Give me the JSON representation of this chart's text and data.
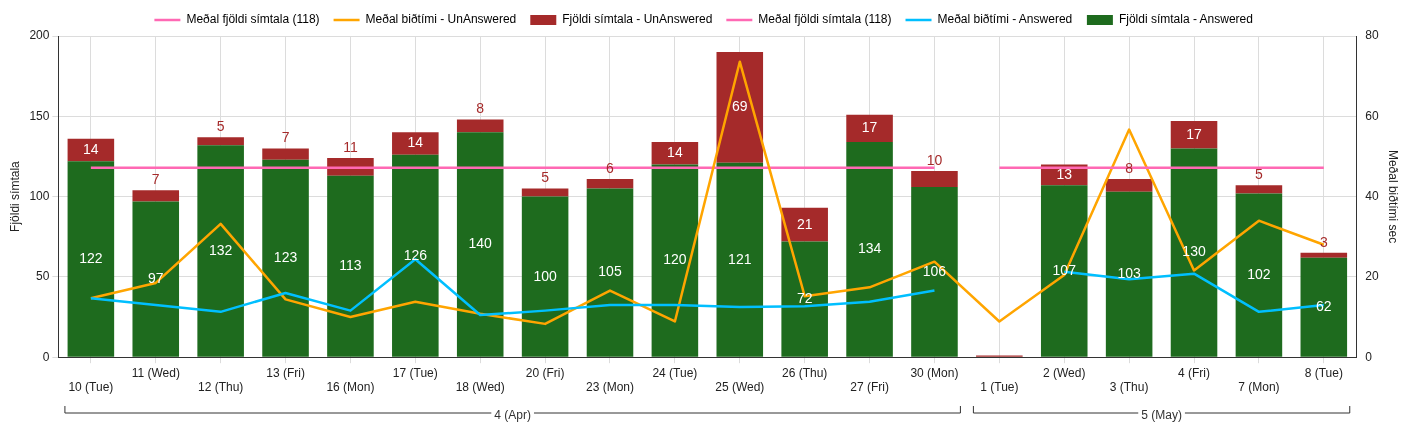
{
  "chart_data": {
    "type": "bar",
    "stacked": true,
    "categories": [
      "10 (Tue)",
      "11 (Wed)",
      "12 (Thu)",
      "13 (Fri)",
      "16 (Mon)",
      "17 (Tue)",
      "18 (Wed)",
      "20 (Fri)",
      "23 (Mon)",
      "24 (Tue)",
      "25 (Wed)",
      "26 (Thu)",
      "27 (Fri)",
      "30 (Mon)",
      "1 (Tue)",
      "2 (Wed)",
      "3 (Thu)",
      "4 (Fri)",
      "7 (Mon)",
      "8 (Tue)"
    ],
    "ylabel": "Fjöldi símtala",
    "y2label": "Meðal biðtími sec",
    "ylim": [
      0,
      200
    ],
    "yticks": [
      0,
      50,
      100,
      150,
      200
    ],
    "y2lim": [
      0,
      80
    ],
    "y2ticks": [
      0,
      20,
      40,
      60,
      80
    ],
    "grid": true,
    "legend": "top",
    "annotations": [
      "4 (Apr)",
      "5 (May)"
    ],
    "series": [
      {
        "name": "Fjöldi símtala - Answered",
        "color": "#1e6b1e",
        "values": [
          122,
          97,
          132,
          123,
          113,
          126,
          140,
          100,
          105,
          120,
          121,
          72,
          134,
          106,
          0,
          107,
          103,
          130,
          102,
          62
        ],
        "value_labels": [
          "122",
          "97",
          "132",
          "123",
          "113",
          "126",
          "140",
          "100",
          "105",
          "120",
          "121",
          "72",
          "134",
          "106",
          null,
          "107",
          "103",
          "130",
          "102",
          "62"
        ]
      },
      {
        "name": "Meðal biðtími - Answered",
        "type": "line",
        "axis": "y2",
        "color": "#00bfff",
        "values": [
          14.7,
          13,
          11.3,
          16,
          11.6,
          24.4,
          10.5,
          11.6,
          13,
          13,
          12.5,
          12.7,
          13.8,
          16.6,
          null,
          21.3,
          19.4,
          20.8,
          11.3,
          13
        ]
      },
      {
        "name": "Meðal fjöldi símtala (118)",
        "type": "line",
        "color": "#ff69b4",
        "values": [
          null,
          null,
          null,
          null,
          null,
          null,
          null,
          null,
          null,
          null,
          null,
          null,
          null,
          null,
          118,
          118,
          118,
          118,
          118,
          118
        ]
      },
      {
        "name": "Fjöldi símtala - UnAnswered",
        "color": "#a52a2a",
        "values": [
          14,
          7,
          5,
          7,
          11,
          14,
          8,
          5,
          6,
          14,
          69,
          21,
          17,
          10,
          1,
          13,
          8,
          17,
          5,
          3
        ],
        "value_labels": [
          "14",
          "7",
          "5",
          "7",
          "11",
          "14",
          "8",
          "5",
          "6",
          "14",
          "69",
          "21",
          "17",
          "10",
          null,
          "13",
          "8",
          "17",
          "5",
          "3"
        ]
      },
      {
        "name": "Meðal biðtími - UnAnswered",
        "type": "line",
        "axis": "y2",
        "color": "#ffa500",
        "values": [
          14.7,
          18.5,
          33.2,
          14.4,
          10,
          13.8,
          10.8,
          8.3,
          16.6,
          8.9,
          73.6,
          15.2,
          17.4,
          23.8,
          8.9,
          20.5,
          56.7,
          21.6,
          34,
          28
        ]
      },
      {
        "name": "Meðal fjöldi símtala (118)",
        "type": "line",
        "color": "#ff69b4",
        "values": [
          118,
          118,
          118,
          118,
          118,
          118,
          118,
          118,
          118,
          118,
          118,
          118,
          118,
          118,
          null,
          null,
          null,
          null,
          null,
          null
        ]
      }
    ]
  }
}
